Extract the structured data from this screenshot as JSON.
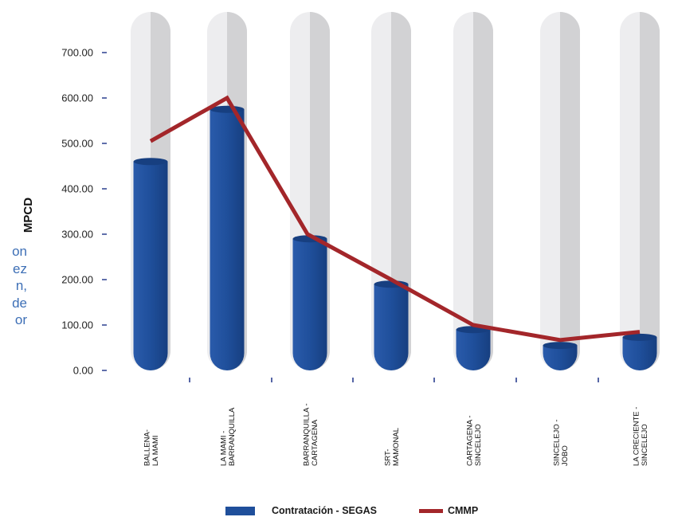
{
  "chart_data": {
    "type": "bar",
    "categories": [
      [
        "BALLENA-",
        "LA MAMI"
      ],
      [
        "LA MAMI -",
        "BARRANQUILLA"
      ],
      [
        "BARRANQUILLA -",
        "CARTAGENA"
      ],
      [
        "SRT-",
        "MAMONAL"
      ],
      [
        "CARTAGENA -",
        "SINCELEJO"
      ],
      [
        "SINCELEJO -",
        "JOBO"
      ],
      [
        "LA CRECIENTE -",
        "SINCELEJO"
      ]
    ],
    "series": [
      {
        "name": "Contratación - SEGAS",
        "kind": "bar",
        "color": "#1f4f9b",
        "values": [
          460,
          575,
          290,
          190,
          90,
          55,
          73
        ]
      },
      {
        "name": "CMMP",
        "kind": "line",
        "color": "#a3262a",
        "values": [
          505,
          600,
          300,
          200,
          100,
          67,
          85
        ]
      }
    ],
    "ylabel": "MPCD",
    "ylim": [
      0,
      700
    ],
    "yticks": [
      "0.00",
      "100.00",
      "200.00",
      "300.00",
      "400.00",
      "500.00",
      "600.00",
      "700.00"
    ],
    "legend_position": "bottom"
  },
  "side_text_fragments": [
    "on",
    "ez",
    "n,",
    "de",
    "or"
  ],
  "colors": {
    "background_capsule": "#ededef",
    "background_capsule_shade": "#d2d2d4",
    "bar_dark": "#173f80",
    "tick_marks": "#2b3f8f"
  }
}
